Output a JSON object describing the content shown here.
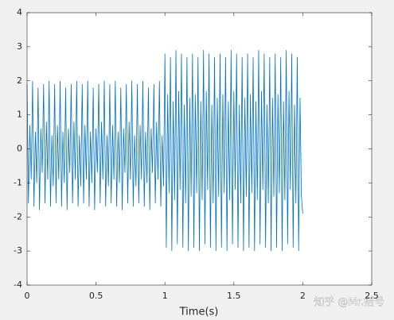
{
  "chart_data": {
    "type": "line",
    "xlabel": "Time(s)",
    "annotation": "知乎 @Mr.括号",
    "xlim": [
      0,
      2.5
    ],
    "xticks": [
      0,
      0.5,
      1,
      1.5,
      2,
      2.5
    ],
    "ylim": [
      -4,
      4
    ],
    "yticks": [
      -4,
      -3,
      -2,
      -1,
      0,
      1,
      2,
      3,
      4
    ],
    "x": [
      0,
      0.01,
      0.02,
      0.03,
      0.04,
      0.05,
      0.06,
      0.07,
      0.08,
      0.09,
      0.1,
      0.11,
      0.12,
      0.13,
      0.14,
      0.15,
      0.16,
      0.17,
      0.18,
      0.19,
      0.2,
      0.21,
      0.22,
      0.23,
      0.24,
      0.25,
      0.26,
      0.27,
      0.28,
      0.29,
      0.3,
      0.31,
      0.32,
      0.33,
      0.34,
      0.35,
      0.36,
      0.37,
      0.38,
      0.39,
      0.4,
      0.41,
      0.42,
      0.43,
      0.44,
      0.45,
      0.46,
      0.47,
      0.48,
      0.49,
      0.5,
      0.51,
      0.52,
      0.53,
      0.54,
      0.55,
      0.56,
      0.57,
      0.58,
      0.59,
      0.6,
      0.61,
      0.62,
      0.63,
      0.64,
      0.65,
      0.66,
      0.67,
      0.68,
      0.69,
      0.7,
      0.71,
      0.72,
      0.73,
      0.74,
      0.75,
      0.76,
      0.77,
      0.78,
      0.79,
      0.8,
      0.81,
      0.82,
      0.83,
      0.84,
      0.85,
      0.86,
      0.87,
      0.88,
      0.89,
      0.9,
      0.91,
      0.92,
      0.93,
      0.94,
      0.95,
      0.96,
      0.97,
      0.98,
      0.99,
      1,
      1.01,
      1.02,
      1.03,
      1.04,
      1.05,
      1.06,
      1.07,
      1.08,
      1.09,
      1.1,
      1.11,
      1.12,
      1.13,
      1.14,
      1.15,
      1.16,
      1.17,
      1.18,
      1.19,
      1.2,
      1.21,
      1.22,
      1.23,
      1.24,
      1.25,
      1.26,
      1.27,
      1.28,
      1.29,
      1.3,
      1.31,
      1.32,
      1.33,
      1.34,
      1.35,
      1.36,
      1.37,
      1.38,
      1.39,
      1.4,
      1.41,
      1.42,
      1.43,
      1.44,
      1.45,
      1.46,
      1.47,
      1.48,
      1.49,
      1.5,
      1.51,
      1.52,
      1.53,
      1.54,
      1.55,
      1.56,
      1.57,
      1.58,
      1.59,
      1.6,
      1.61,
      1.62,
      1.63,
      1.64,
      1.65,
      1.66,
      1.67,
      1.68,
      1.69,
      1.7,
      1.71,
      1.72,
      1.73,
      1.74,
      1.75,
      1.76,
      1.77,
      1.78,
      1.79,
      1.8,
      1.81,
      1.82,
      1.83,
      1.84,
      1.85,
      1.86,
      1.87,
      1.88,
      1.89,
      1.9,
      1.91,
      1.92,
      1.93,
      1.94,
      1.95,
      1.96,
      1.97,
      1.98,
      1.99,
      2
    ],
    "series": [
      {
        "color": "#0072bd",
        "values": [
          1.9,
          -1.6,
          0.7,
          -0.9,
          2.0,
          -1.7,
          0.5,
          -1.0,
          1.8,
          -1.8,
          0.6,
          -0.7,
          1.9,
          -1.6,
          0.8,
          -0.9,
          2.0,
          -1.7,
          0.4,
          -1.1,
          1.9,
          -1.6,
          0.7,
          -0.9,
          2.0,
          -1.7,
          0.5,
          -1.0,
          1.8,
          -1.8,
          0.6,
          -0.7,
          1.9,
          -1.6,
          0.8,
          -0.9,
          2.0,
          -1.7,
          0.4,
          -1.1,
          1.9,
          -1.6,
          0.7,
          -0.9,
          2.0,
          -1.7,
          0.5,
          -1.0,
          1.8,
          -1.8,
          0.6,
          -0.7,
          1.9,
          -1.6,
          0.8,
          -0.9,
          2.0,
          -1.7,
          0.4,
          -1.1,
          1.9,
          -1.6,
          0.7,
          -0.9,
          2.0,
          -1.7,
          0.5,
          -1.0,
          1.8,
          -1.8,
          0.6,
          -0.7,
          1.9,
          -1.6,
          0.8,
          -0.9,
          2.0,
          -1.7,
          0.4,
          -1.1,
          1.9,
          -1.6,
          0.7,
          -0.9,
          2.0,
          -1.7,
          0.5,
          -1.0,
          1.8,
          -1.8,
          0.6,
          -0.7,
          1.9,
          -1.6,
          0.8,
          -0.9,
          2.0,
          -1.7,
          0.4,
          -1.1,
          2.8,
          -2.9,
          1.6,
          -1.3,
          2.7,
          -3.0,
          1.4,
          -1.5,
          2.9,
          -2.8,
          1.7,
          -1.2,
          2.8,
          -2.9,
          1.3,
          -1.6,
          2.7,
          -3.0,
          1.5,
          -1.4,
          2.8,
          -2.9,
          1.6,
          -1.3,
          2.7,
          -3.0,
          1.4,
          -1.5,
          2.9,
          -2.8,
          1.7,
          -1.2,
          2.8,
          -2.9,
          1.3,
          -1.6,
          2.7,
          -3.0,
          1.5,
          -1.4,
          2.8,
          -2.9,
          1.6,
          -1.3,
          2.7,
          -3.0,
          1.4,
          -1.5,
          2.9,
          -2.8,
          1.7,
          -1.2,
          2.8,
          -2.9,
          1.3,
          -1.6,
          2.7,
          -3.0,
          1.5,
          -1.4,
          2.8,
          -2.9,
          1.6,
          -1.3,
          2.7,
          -3.0,
          1.4,
          -1.5,
          2.9,
          -2.8,
          1.7,
          -1.2,
          2.8,
          -2.9,
          1.3,
          -1.6,
          2.7,
          -3.0,
          1.5,
          -1.4,
          2.8,
          -2.9,
          1.6,
          -1.3,
          2.7,
          -3.0,
          1.4,
          -1.5,
          2.9,
          -2.8,
          1.7,
          -1.2,
          2.8,
          -2.9,
          1.3,
          -1.6,
          2.7,
          -3.0,
          1.5,
          -1.4,
          -1.9
        ]
      }
    ]
  }
}
